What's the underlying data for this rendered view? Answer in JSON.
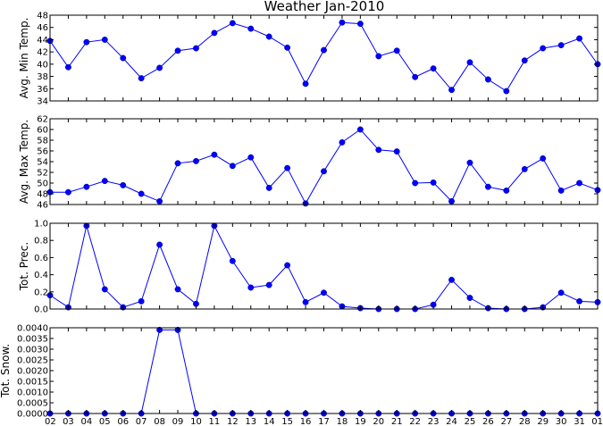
{
  "chart_data": {
    "type": "line",
    "title": "Weather Jan-2010",
    "x": [
      "02",
      "03",
      "04",
      "05",
      "06",
      "07",
      "08",
      "09",
      "10",
      "11",
      "12",
      "13",
      "14",
      "15",
      "16",
      "17",
      "18",
      "19",
      "20",
      "21",
      "22",
      "23",
      "24",
      "25",
      "26",
      "27",
      "28",
      "29",
      "30",
      "31",
      "01"
    ],
    "colors": {
      "series": "#0000ff",
      "axis": "#000000"
    },
    "panels": [
      {
        "ylabel": "Avg. Min Temp.",
        "ylim": [
          34,
          48
        ],
        "yticks": [
          34,
          36,
          38,
          40,
          42,
          44,
          46,
          48
        ],
        "ytick_labels": [
          "34",
          "36",
          "38",
          "40",
          "42",
          "44",
          "46",
          "48"
        ],
        "values": [
          43.8,
          39.5,
          43.6,
          44.0,
          41.0,
          37.7,
          39.4,
          42.2,
          42.6,
          45.1,
          46.7,
          45.8,
          44.5,
          42.7,
          36.8,
          42.3,
          46.8,
          46.6,
          41.3,
          42.2,
          37.9,
          39.3,
          35.8,
          40.3,
          37.5,
          35.6,
          40.6,
          42.6,
          43.1,
          44.2,
          40.0
        ]
      },
      {
        "ylabel": "Avg. Max Temp.",
        "ylim": [
          46,
          62
        ],
        "yticks": [
          46,
          48,
          50,
          52,
          54,
          56,
          58,
          60,
          62
        ],
        "ytick_labels": [
          "46",
          "48",
          "50",
          "52",
          "54",
          "56",
          "58",
          "60",
          "62"
        ],
        "values": [
          48.3,
          48.3,
          49.3,
          50.4,
          49.6,
          48.0,
          46.6,
          53.7,
          54.1,
          55.3,
          53.2,
          54.8,
          49.1,
          52.8,
          46.2,
          52.2,
          57.6,
          60.0,
          56.2,
          55.9,
          50.0,
          50.1,
          46.6,
          53.8,
          49.3,
          48.6,
          52.6,
          54.6,
          48.6,
          50.0,
          48.7
        ]
      },
      {
        "ylabel": "Tot. Prec.",
        "ylim": [
          0,
          1.0
        ],
        "yticks": [
          0,
          0.2,
          0.4,
          0.6,
          0.8,
          1.0
        ],
        "ytick_labels": [
          "0.0",
          "0.2",
          "0.4",
          "0.6",
          "0.8",
          "1.0"
        ],
        "values": [
          0.16,
          0.02,
          0.97,
          0.23,
          0.02,
          0.09,
          0.75,
          0.23,
          0.06,
          0.97,
          0.56,
          0.25,
          0.28,
          0.51,
          0.08,
          0.19,
          0.03,
          0.01,
          0.0,
          0.0,
          0.0,
          0.05,
          0.34,
          0.13,
          0.01,
          0.0,
          0.0,
          0.02,
          0.19,
          0.09,
          0.08
        ]
      },
      {
        "ylabel": "Tot. Snow.",
        "ylim": [
          0,
          0.004
        ],
        "yticks": [
          0,
          0.0005,
          0.001,
          0.0015,
          0.002,
          0.0025,
          0.003,
          0.0035,
          0.004
        ],
        "ytick_labels": [
          "0.0000",
          "0.0005",
          "0.0010",
          "0.0015",
          "0.0020",
          "0.0025",
          "0.0030",
          "0.0035",
          "0.0040"
        ],
        "values": [
          0,
          0,
          0,
          0,
          0,
          0,
          0.0039,
          0.0039,
          0,
          0,
          0,
          0,
          0,
          0,
          0,
          0,
          0,
          0,
          0,
          0,
          0,
          0,
          0,
          0,
          0,
          0,
          0,
          0,
          0,
          0,
          0
        ]
      }
    ]
  }
}
